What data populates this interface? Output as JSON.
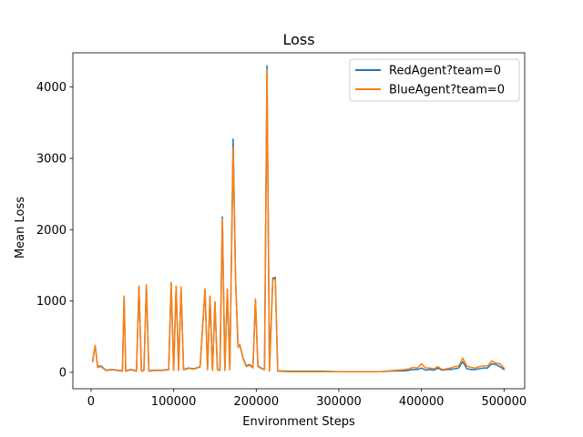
{
  "chart_data": {
    "type": "line",
    "title": "Loss",
    "xlabel": "Environment Steps",
    "ylabel": "Mean Loss",
    "xlim": [
      -22000,
      525000
    ],
    "ylim": [
      -230,
      4480
    ],
    "xticks": [
      0,
      100000,
      200000,
      300000,
      400000,
      500000
    ],
    "xtick_labels": [
      "0",
      "100000",
      "200000",
      "300000",
      "400000",
      "500000"
    ],
    "yticks": [
      0,
      1000,
      2000,
      3000,
      4000
    ],
    "ytick_labels": [
      "0",
      "1000",
      "2000",
      "3000",
      "4000"
    ],
    "grid": false,
    "legend_position": "top-right",
    "series": [
      {
        "name": "RedAgent?team=0",
        "color": "#1f77b4",
        "x": [
          2000,
          5000,
          8000,
          12000,
          18000,
          25000,
          32000,
          38000,
          40000,
          42000,
          48000,
          55000,
          58000,
          61000,
          64000,
          67000,
          70000,
          76000,
          85000,
          94000,
          97000,
          100000,
          103000,
          106000,
          109000,
          112000,
          118000,
          125000,
          132000,
          138000,
          141000,
          144000,
          147000,
          150000,
          153000,
          156000,
          159000,
          162000,
          165000,
          168000,
          172000,
          175000,
          178000,
          180000,
          184000,
          188000,
          192000,
          196000,
          199000,
          202000,
          206000,
          210000,
          213000,
          216000,
          220000,
          223000,
          226000,
          240000,
          260000,
          280000,
          300000,
          320000,
          340000,
          350000,
          360000,
          370000,
          380000,
          385000,
          390000,
          395000,
          400000,
          405000,
          410000,
          415000,
          420000,
          425000,
          430000,
          435000,
          440000,
          445000,
          450000,
          455000,
          460000,
          465000,
          470000,
          475000,
          480000,
          485000,
          490000,
          495000,
          500000
        ],
        "y": [
          170,
          370,
          80,
          90,
          30,
          40,
          30,
          20,
          1060,
          20,
          40,
          20,
          1200,
          20,
          30,
          1220,
          20,
          30,
          30,
          40,
          1250,
          30,
          1200,
          30,
          1180,
          40,
          60,
          50,
          80,
          1170,
          40,
          1060,
          30,
          980,
          40,
          30,
          2180,
          30,
          1160,
          40,
          3270,
          1300,
          350,
          390,
          200,
          90,
          110,
          70,
          1020,
          90,
          60,
          40,
          4300,
          20,
          1320,
          1330,
          20,
          15,
          15,
          15,
          10,
          10,
          10,
          10,
          15,
          20,
          20,
          30,
          40,
          40,
          60,
          30,
          40,
          30,
          60,
          30,
          40,
          40,
          50,
          60,
          150,
          50,
          40,
          40,
          50,
          60,
          60,
          120,
          110,
          80,
          40
        ]
      },
      {
        "name": "BlueAgent?team=0",
        "color": "#ff7f0e",
        "x": [
          2000,
          5000,
          8000,
          12000,
          18000,
          25000,
          32000,
          38000,
          40000,
          42000,
          48000,
          55000,
          58000,
          61000,
          64000,
          67000,
          70000,
          76000,
          85000,
          94000,
          97000,
          100000,
          103000,
          106000,
          109000,
          112000,
          118000,
          125000,
          132000,
          138000,
          141000,
          144000,
          147000,
          150000,
          153000,
          156000,
          159000,
          162000,
          165000,
          168000,
          172000,
          175000,
          178000,
          180000,
          184000,
          188000,
          192000,
          196000,
          199000,
          202000,
          206000,
          210000,
          213000,
          216000,
          220000,
          223000,
          226000,
          240000,
          260000,
          280000,
          300000,
          320000,
          340000,
          350000,
          360000,
          370000,
          380000,
          385000,
          390000,
          395000,
          400000,
          405000,
          410000,
          415000,
          420000,
          425000,
          430000,
          435000,
          440000,
          445000,
          450000,
          455000,
          460000,
          465000,
          470000,
          475000,
          480000,
          485000,
          490000,
          495000,
          500000
        ],
        "y": [
          150,
          380,
          70,
          80,
          25,
          35,
          25,
          15,
          1070,
          15,
          35,
          15,
          1210,
          15,
          25,
          1230,
          15,
          25,
          25,
          35,
          1260,
          25,
          1210,
          25,
          1200,
          35,
          55,
          45,
          75,
          1170,
          35,
          1070,
          25,
          990,
          35,
          25,
          2150,
          25,
          1170,
          35,
          3150,
          1280,
          360,
          390,
          190,
          80,
          100,
          60,
          1030,
          80,
          55,
          35,
          4240,
          15,
          1300,
          1310,
          15,
          10,
          10,
          10,
          8,
          8,
          8,
          8,
          20,
          30,
          40,
          50,
          70,
          60,
          120,
          60,
          60,
          50,
          80,
          40,
          50,
          60,
          80,
          90,
          200,
          90,
          70,
          60,
          80,
          90,
          90,
          160,
          130,
          120,
          60
        ]
      }
    ]
  }
}
